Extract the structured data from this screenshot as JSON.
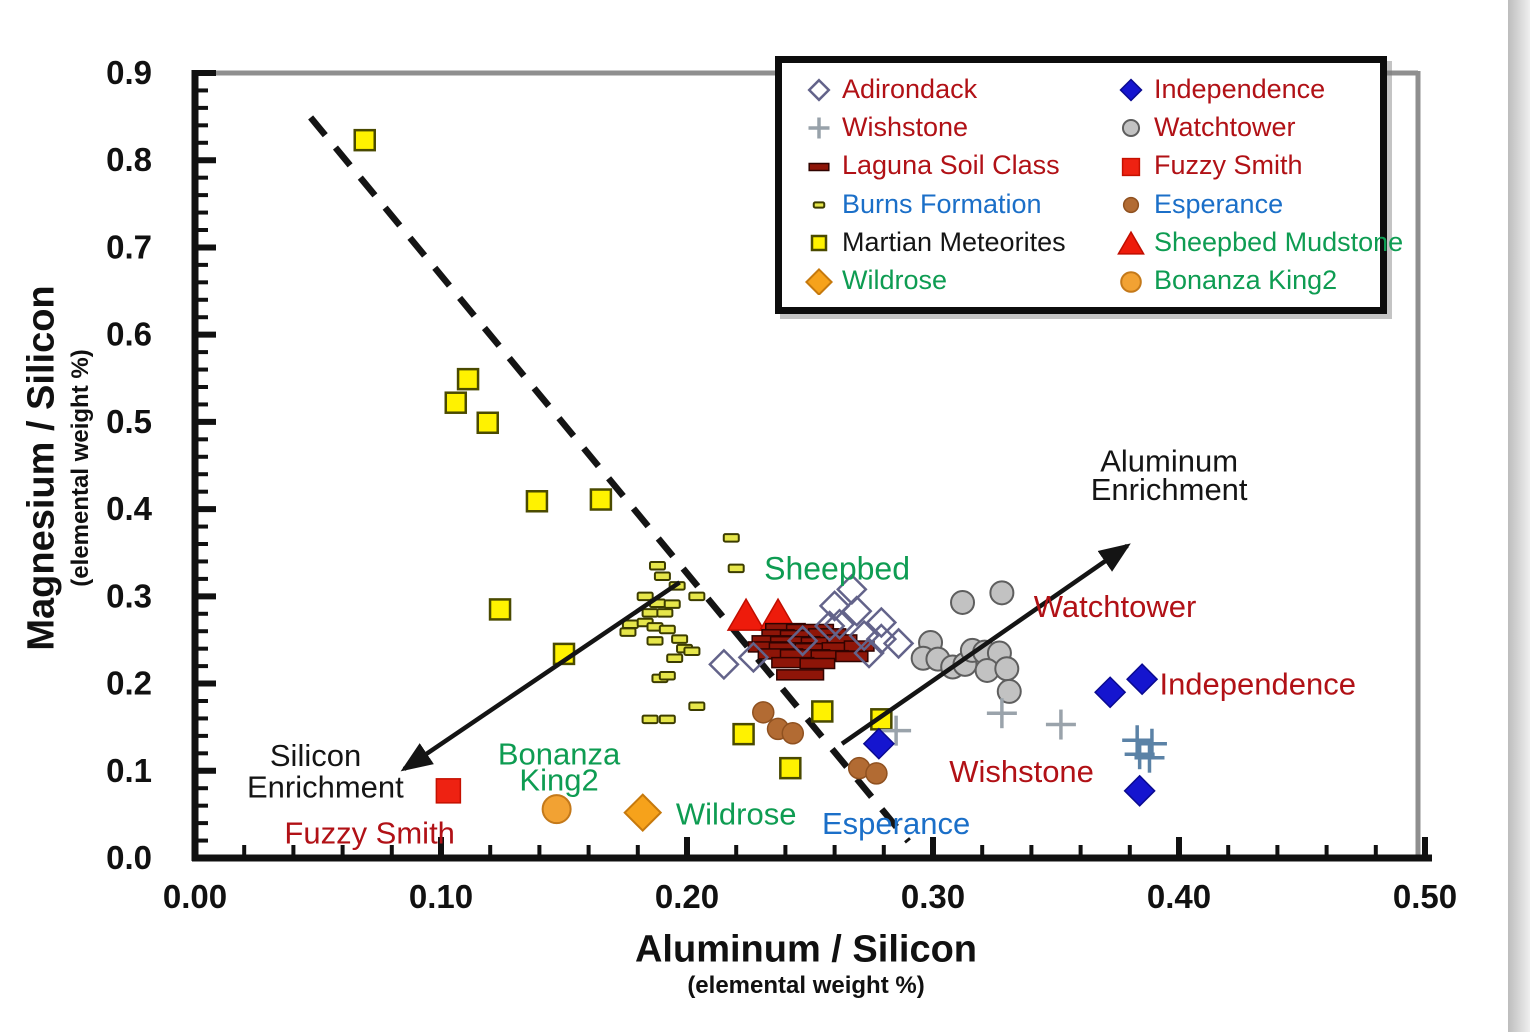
{
  "colors": {
    "dark_red_text": "#B11116",
    "green_text": "#0E9C52",
    "blue_text": "#1B6FC8",
    "black_text": "#151515",
    "axis": "#111111",
    "frame_gray": "#8F8F8F"
  },
  "chart_data": {
    "type": "scatter",
    "xlabel": "Aluminum / Silicon",
    "xlabel_sub": "(elemental weight %)",
    "ylabel": "Magnesium / Silicon",
    "ylabel_sub": "(elemental weight %)",
    "xlim": [
      0,
      0.5
    ],
    "ylim": [
      0,
      0.9
    ],
    "x_ticks": {
      "major": [
        0,
        0.1,
        0.2,
        0.3,
        0.4,
        0.5
      ],
      "labels": [
        "0.00",
        "0.10",
        "0.20",
        "0.30",
        "0.40",
        "0.50"
      ],
      "minor_step": 0.02
    },
    "y_ticks": {
      "major": [
        0,
        0.1,
        0.2,
        0.3,
        0.4,
        0.5,
        0.6,
        0.7,
        0.8,
        0.9
      ],
      "labels": [
        "0.0",
        "0.1",
        "0.2",
        "0.3",
        "0.4",
        "0.5",
        "0.6",
        "0.7",
        "0.8",
        "0.9"
      ],
      "minor_step": 0.02
    },
    "mixing_line": {
      "style": "dashed",
      "from": [
        0.047,
        0.849
      ],
      "to": [
        0.29,
        0.019
      ]
    },
    "arrows": [
      {
        "name": "silicon-enrichment-arrow",
        "from": [
          0.197,
          0.316
        ],
        "to": [
          0.085,
          0.102
        ]
      },
      {
        "name": "aluminum-enrichment-arrow",
        "from": [
          0.263,
          0.131
        ],
        "to": [
          0.379,
          0.358
        ]
      }
    ],
    "series": [
      {
        "name": "Burns Formation",
        "marker": "burns-dash",
        "fill": "#E6E64A",
        "stroke": "#3C3C00",
        "points": [
          [
            0.218,
            0.367
          ],
          [
            0.22,
            0.332
          ],
          [
            0.188,
            0.335
          ],
          [
            0.19,
            0.323
          ],
          [
            0.196,
            0.312
          ],
          [
            0.183,
            0.3
          ],
          [
            0.204,
            0.3
          ],
          [
            0.188,
            0.292
          ],
          [
            0.194,
            0.291
          ],
          [
            0.185,
            0.281
          ],
          [
            0.191,
            0.281
          ],
          [
            0.177,
            0.268
          ],
          [
            0.183,
            0.27
          ],
          [
            0.187,
            0.265
          ],
          [
            0.176,
            0.259
          ],
          [
            0.192,
            0.262
          ],
          [
            0.187,
            0.249
          ],
          [
            0.197,
            0.251
          ],
          [
            0.199,
            0.24
          ],
          [
            0.202,
            0.237
          ],
          [
            0.195,
            0.229
          ],
          [
            0.189,
            0.206
          ],
          [
            0.192,
            0.209
          ],
          [
            0.204,
            0.174
          ],
          [
            0.185,
            0.159
          ],
          [
            0.192,
            0.159
          ]
        ]
      },
      {
        "name": "Martian Meteorites",
        "marker": "yellow-square",
        "fill": "#FFF200",
        "stroke": "#4A4A00",
        "points": [
          [
            0.069,
            0.823
          ],
          [
            0.111,
            0.549
          ],
          [
            0.106,
            0.522
          ],
          [
            0.119,
            0.499
          ],
          [
            0.139,
            0.409
          ],
          [
            0.165,
            0.411
          ],
          [
            0.124,
            0.285
          ],
          [
            0.15,
            0.234
          ],
          [
            0.223,
            0.142
          ],
          [
            0.255,
            0.168
          ],
          [
            0.279,
            0.159
          ],
          [
            0.242,
            0.103
          ]
        ]
      },
      {
        "name": "Watchtower",
        "marker": "gray-circle",
        "fill": "#C2C2C2",
        "stroke": "#5E5E5E",
        "points": [
          [
            0.237,
            0.252
          ],
          [
            0.312,
            0.293
          ],
          [
            0.328,
            0.304
          ],
          [
            0.299,
            0.247
          ],
          [
            0.296,
            0.229
          ],
          [
            0.302,
            0.228
          ],
          [
            0.308,
            0.219
          ],
          [
            0.313,
            0.222
          ],
          [
            0.316,
            0.238
          ],
          [
            0.321,
            0.236
          ],
          [
            0.327,
            0.235
          ],
          [
            0.322,
            0.215
          ],
          [
            0.33,
            0.217
          ],
          [
            0.331,
            0.191
          ]
        ]
      },
      {
        "name": "Esperance",
        "marker": "brown-circle",
        "fill": "#B26B33",
        "stroke": "#8F5120",
        "points": [
          [
            0.231,
            0.167
          ],
          [
            0.237,
            0.148
          ],
          [
            0.243,
            0.143
          ],
          [
            0.27,
            0.103
          ],
          [
            0.277,
            0.097
          ]
        ]
      },
      {
        "name": "Sheepbed Mudstone",
        "marker": "red-triangle",
        "fill": "#EE1B0B",
        "stroke": "#C00E00",
        "points": [
          [
            0.224,
            0.279
          ],
          [
            0.237,
            0.279
          ]
        ]
      },
      {
        "name": "Laguna Soil Class",
        "marker": "dark-bar",
        "fill": "#8E1508",
        "stroke": "#300300",
        "points": [
          [
            0.24,
            0.263,
            0.016
          ],
          [
            0.25,
            0.262,
            0.019
          ],
          [
            0.237,
            0.256,
            0.013
          ],
          [
            0.247,
            0.255,
            0.018
          ],
          [
            0.257,
            0.257,
            0.015
          ],
          [
            0.235,
            0.249,
            0.017
          ],
          [
            0.244,
            0.248,
            0.02
          ],
          [
            0.254,
            0.247,
            0.015
          ],
          [
            0.263,
            0.25,
            0.012
          ],
          [
            0.233,
            0.242,
            0.016
          ],
          [
            0.243,
            0.241,
            0.019
          ],
          [
            0.252,
            0.24,
            0.016
          ],
          [
            0.262,
            0.241,
            0.014
          ],
          [
            0.27,
            0.243,
            0.012
          ],
          [
            0.238,
            0.234,
            0.018
          ],
          [
            0.248,
            0.233,
            0.02
          ],
          [
            0.258,
            0.232,
            0.015
          ],
          [
            0.267,
            0.231,
            0.013
          ],
          [
            0.243,
            0.224,
            0.017
          ],
          [
            0.253,
            0.223,
            0.014
          ],
          [
            0.246,
            0.21,
            0.019
          ]
        ]
      },
      {
        "name": "Adirondack",
        "marker": "open-diamond",
        "fill": "none",
        "stroke": "#63638A",
        "points": [
          [
            0.215,
            0.222
          ],
          [
            0.227,
            0.23
          ],
          [
            0.247,
            0.249
          ],
          [
            0.258,
            0.266
          ],
          [
            0.262,
            0.268
          ],
          [
            0.26,
            0.289
          ],
          [
            0.267,
            0.308
          ],
          [
            0.269,
            0.283
          ],
          [
            0.279,
            0.27
          ],
          [
            0.272,
            0.255
          ],
          [
            0.279,
            0.251
          ],
          [
            0.274,
            0.235
          ],
          [
            0.286,
            0.246
          ]
        ]
      },
      {
        "name": "Wishstone",
        "marker": "plus",
        "fill": "none",
        "stroke": "#98A2AA",
        "points": [
          [
            0.285,
            0.146,
            "#9AA3AB"
          ],
          [
            0.328,
            0.166,
            "#9AA3AB"
          ],
          [
            0.352,
            0.153,
            "#9AA3AB"
          ],
          [
            0.383,
            0.135,
            "#5B82A6"
          ],
          [
            0.389,
            0.131,
            "#5B82A6"
          ],
          [
            0.384,
            0.119,
            "#5B82A6"
          ],
          [
            0.388,
            0.115,
            "#5B82A6"
          ]
        ]
      },
      {
        "name": "Independence",
        "marker": "blue-diamond",
        "fill": "#1515CF",
        "stroke": "#0A0A90",
        "points": [
          [
            0.278,
            0.131
          ],
          [
            0.372,
            0.19
          ],
          [
            0.385,
            0.205
          ],
          [
            0.384,
            0.077
          ]
        ]
      },
      {
        "name": "Fuzzy Smith",
        "marker": "red-square",
        "fill": "#EE2212",
        "stroke": "#C51000",
        "points": [
          [
            0.103,
            0.077
          ]
        ]
      },
      {
        "name": "Bonanza King2",
        "marker": "orange-circle",
        "fill": "#F2A233",
        "stroke": "#C4791A",
        "points": [
          [
            0.147,
            0.056
          ]
        ]
      },
      {
        "name": "Wildrose",
        "marker": "orange-diamond",
        "fill": "#F6A21B",
        "stroke": "#C6790D",
        "points": [
          [
            0.182,
            0.052
          ]
        ]
      }
    ],
    "annotations": [
      {
        "text": "Sheepbed",
        "x": 0.261,
        "y": 0.332,
        "color": "green_text",
        "size": 32
      },
      {
        "text": "Watchtower",
        "x": 0.374,
        "y": 0.289,
        "color": "dark_red_text",
        "size": 31
      },
      {
        "text": "Independence",
        "x": 0.432,
        "y": 0.2,
        "color": "dark_red_text",
        "size": 31
      },
      {
        "text": "Wishstone",
        "x": 0.336,
        "y": 0.1,
        "color": "dark_red_text",
        "size": 31
      },
      {
        "text": "Esperance",
        "x": 0.285,
        "y": 0.04,
        "color": "blue_text",
        "size": 31
      },
      {
        "text": "Fuzzy Smith",
        "x": 0.071,
        "y": 0.029,
        "color": "dark_red_text",
        "size": 31
      },
      {
        "text": "Bonanza",
        "x": 0.148,
        "y": 0.12,
        "color": "green_text",
        "size": 31
      },
      {
        "text": "King2",
        "x": 0.148,
        "y": 0.09,
        "color": "green_text",
        "size": 31
      },
      {
        "text": "Wildrose",
        "x": 0.22,
        "y": 0.051,
        "color": "green_text",
        "size": 31
      },
      {
        "text": "Silicon",
        "x": 0.049,
        "y": 0.118,
        "color": "black_text",
        "size": 31
      },
      {
        "text": "Enrichment",
        "x": 0.053,
        "y": 0.082,
        "color": "black_text",
        "size": 31
      },
      {
        "text": "Aluminum",
        "x": 0.396,
        "y": 0.456,
        "color": "black_text",
        "size": 31
      },
      {
        "text": "Enrichment",
        "x": 0.396,
        "y": 0.423,
        "color": "black_text",
        "size": 31
      }
    ],
    "legend": {
      "columns": [
        [
          {
            "label": "Adirondack",
            "marker": "open-diamond",
            "color": "dark_red_text"
          },
          {
            "label": "Wishstone",
            "marker": "plus",
            "color": "dark_red_text"
          },
          {
            "label": "Laguna Soil Class",
            "marker": "dark-bar",
            "color": "dark_red_text"
          },
          {
            "label": "Burns Formation",
            "marker": "burns-dash",
            "color": "blue_text"
          },
          {
            "label": "Martian Meteorites",
            "marker": "yellow-square",
            "color": "black_text"
          },
          {
            "label": "Wildrose",
            "marker": "orange-diamond",
            "color": "green_text"
          }
        ],
        [
          {
            "label": "Independence",
            "marker": "blue-diamond",
            "color": "dark_red_text"
          },
          {
            "label": "Watchtower",
            "marker": "gray-circle",
            "color": "dark_red_text"
          },
          {
            "label": "Fuzzy Smith",
            "marker": "red-square",
            "color": "dark_red_text"
          },
          {
            "label": "Esperance",
            "marker": "brown-circle",
            "color": "blue_text"
          },
          {
            "label": "Sheepbed Mudstone",
            "marker": "red-triangle",
            "color": "green_text"
          },
          {
            "label": "Bonanza King2",
            "marker": "orange-circle",
            "color": "green_text"
          }
        ]
      ]
    }
  }
}
